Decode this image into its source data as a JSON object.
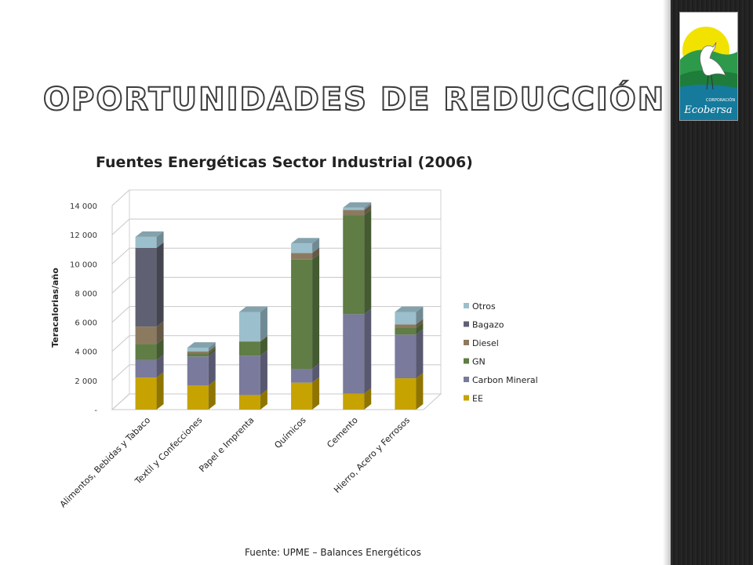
{
  "slide": {
    "title": "Oportunidades de reducción",
    "source": "Fuente: UPME – Balances Energéticos",
    "logo_main": "Ecobersa",
    "logo_sub": "CORPORACIÓN"
  },
  "chart_data": {
    "type": "bar",
    "stacked": true,
    "three_d": true,
    "title": "Fuentes Energéticas Sector Industrial (2006)",
    "xlabel": "",
    "ylabel": "Teracalorias/año",
    "ylim": [
      0,
      14000
    ],
    "yticks": [
      0,
      2000,
      4000,
      6000,
      8000,
      10000,
      12000,
      14000
    ],
    "ytick_labels": [
      "-",
      "2 000",
      "4 000",
      "6 000",
      "8 000",
      "10 000",
      "12 000",
      "14 000"
    ],
    "legend_position": "right",
    "categories": [
      "Alimentos, Bebidas y Tabaco",
      "Textil y Confecciones",
      "Papel e Imprenta",
      "Químicos",
      "Cemento",
      "Hierro, Acero y Ferrosos"
    ],
    "series": [
      {
        "name": "EE",
        "color": "#c6a300",
        "values": [
          2200,
          1650,
          1000,
          1850,
          1100,
          2150
        ]
      },
      {
        "name": "Carbon Mineral",
        "color": "#7a7a9c",
        "values": [
          1200,
          2000,
          2700,
          950,
          5450,
          3000
        ]
      },
      {
        "name": "GN",
        "color": "#5f7d44",
        "values": [
          1100,
          200,
          950,
          7500,
          6800,
          450
        ]
      },
      {
        "name": "Diesel",
        "color": "#8c7a60",
        "values": [
          1200,
          150,
          50,
          450,
          350,
          250
        ]
      },
      {
        "name": "Bagazo",
        "color": "#5f6071",
        "values": [
          5400,
          0,
          0,
          0,
          0,
          0
        ]
      },
      {
        "name": "Otros",
        "color": "#9bbfcc",
        "values": [
          750,
          250,
          2000,
          650,
          150,
          850
        ]
      }
    ]
  }
}
